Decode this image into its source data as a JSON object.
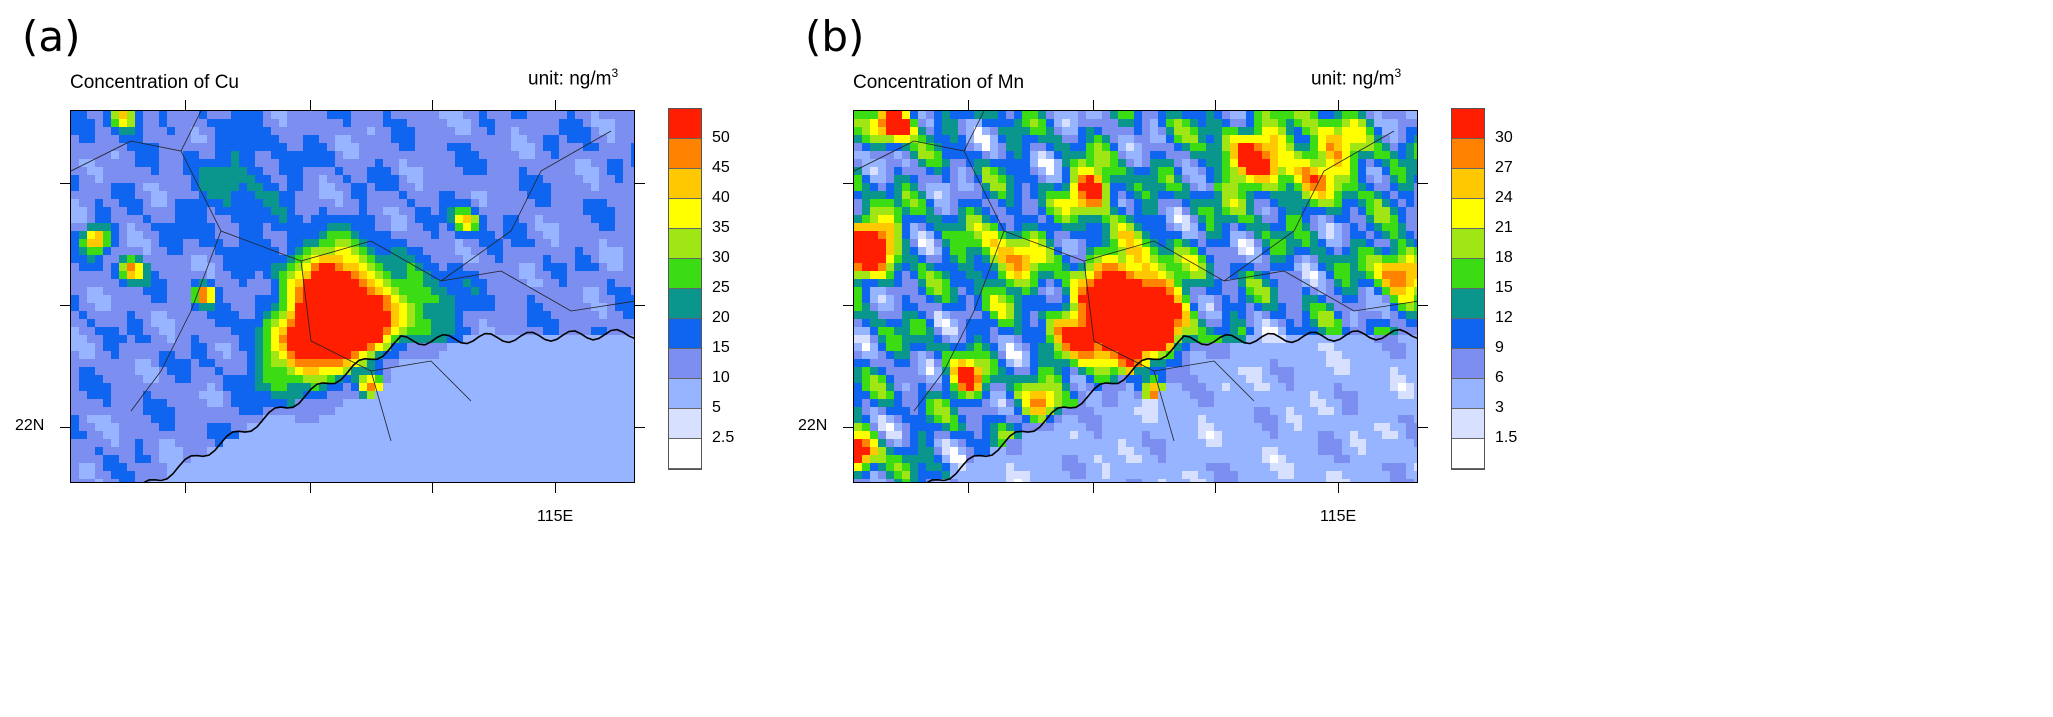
{
  "chart_data": [
    {
      "type": "heatmap",
      "panel_label": "(a)",
      "title": "Concentration of Cu",
      "unit_prefix": "unit: ng/m",
      "unit_sup": "3",
      "x_tick_label": "115E",
      "y_tick_label": "22N",
      "xlim": [
        111.06,
        115.65
      ],
      "ylim": [
        21.55,
        24.6
      ],
      "levels": [
        "2.5",
        "5",
        "10",
        "15",
        "20",
        "25",
        "30",
        "35",
        "40",
        "45",
        "50"
      ],
      "level_values": [
        2.5,
        5,
        10,
        15,
        20,
        25,
        30,
        35,
        40,
        45,
        50
      ],
      "colors": [
        "#ffffff",
        "#d8e0ff",
        "#96b4ff",
        "#7c8ef0",
        "#0f64f0",
        "#0a968c",
        "#3cdc14",
        "#a0e614",
        "#ffff00",
        "#ffc800",
        "#ff8200",
        "#ff1e00"
      ],
      "background": {
        "land": 13,
        "ocean": 7,
        "noise": 4
      },
      "hotspots": [
        [
          113.2,
          23.15,
          48,
          0.35
        ],
        [
          113.45,
          22.85,
          40,
          0.25
        ],
        [
          113.1,
          22.75,
          30,
          0.3
        ],
        [
          112.14,
          23.1,
          40,
          0.08
        ],
        [
          111.5,
          24.55,
          35,
          0.1
        ],
        [
          111.26,
          23.55,
          35,
          0.1
        ],
        [
          111.55,
          23.3,
          35,
          0.1
        ],
        [
          114.27,
          23.7,
          30,
          0.1
        ],
        [
          113.5,
          22.35,
          40,
          0.1
        ],
        [
          112.9,
          22.6,
          20,
          0.35
        ],
        [
          113.9,
          23.0,
          16,
          0.3
        ],
        [
          112.4,
          24.0,
          8,
          0.4
        ]
      ]
    },
    {
      "type": "heatmap",
      "panel_label": "(b)",
      "title": "Concentration of Mn",
      "unit_prefix": "unit: ng/m",
      "unit_sup": "3",
      "x_tick_label": "115E",
      "y_tick_label": "22N",
      "xlim": [
        111.06,
        115.65
      ],
      "ylim": [
        21.55,
        24.6
      ],
      "levels": [
        "1.5",
        "3",
        "6",
        "9",
        "12",
        "15",
        "18",
        "21",
        "24",
        "27",
        "30"
      ],
      "level_values": [
        1.5,
        3,
        6,
        9,
        12,
        15,
        18,
        21,
        24,
        27,
        30
      ],
      "colors": [
        "#ffffff",
        "#d8e0ff",
        "#96b4ff",
        "#7c8ef0",
        "#0f64f0",
        "#0a968c",
        "#3cdc14",
        "#a0e614",
        "#ffff00",
        "#ffc800",
        "#ff8200",
        "#ff1e00"
      ],
      "background": {
        "land": 10,
        "ocean": 4.5,
        "noise": 7
      },
      "hotspots": [
        [
          113.3,
          23.1,
          30,
          0.35
        ],
        [
          113.5,
          22.8,
          24,
          0.25
        ],
        [
          113.0,
          22.75,
          20,
          0.3
        ],
        [
          111.15,
          23.5,
          30,
          0.25
        ],
        [
          111.4,
          24.5,
          30,
          0.15
        ],
        [
          113.0,
          23.95,
          26,
          0.18
        ],
        [
          115.5,
          23.3,
          22,
          0.2
        ],
        [
          112.0,
          22.4,
          22,
          0.15
        ],
        [
          111.1,
          21.8,
          26,
          0.15
        ],
        [
          114.3,
          24.2,
          18,
          0.3
        ],
        [
          112.3,
          23.4,
          14,
          0.3
        ],
        [
          114.9,
          24.2,
          14,
          0.35
        ],
        [
          113.5,
          22.3,
          24,
          0.1
        ],
        [
          112.6,
          22.2,
          16,
          0.15
        ]
      ]
    }
  ]
}
